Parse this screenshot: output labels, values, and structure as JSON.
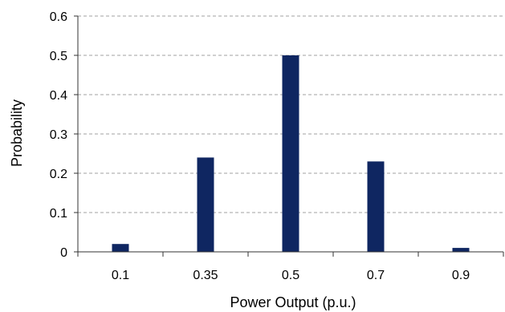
{
  "chart_data": {
    "type": "bar",
    "title": "",
    "xlabel": "Power Output (p.u.)",
    "ylabel": "Probability",
    "categories": [
      "0.1",
      "0.35",
      "0.5",
      "0.7",
      "0.9"
    ],
    "values": [
      0.02,
      0.24,
      0.5,
      0.23,
      0.01
    ],
    "ylim": [
      0,
      0.6
    ],
    "yticks": [
      "0",
      "0.1",
      "0.2",
      "0.3",
      "0.4",
      "0.5",
      "0.6"
    ],
    "grid": true,
    "legend": "none",
    "bar_color": "#0f2661",
    "grid_color": "#a0a0a0",
    "axis_color": "#333333"
  }
}
